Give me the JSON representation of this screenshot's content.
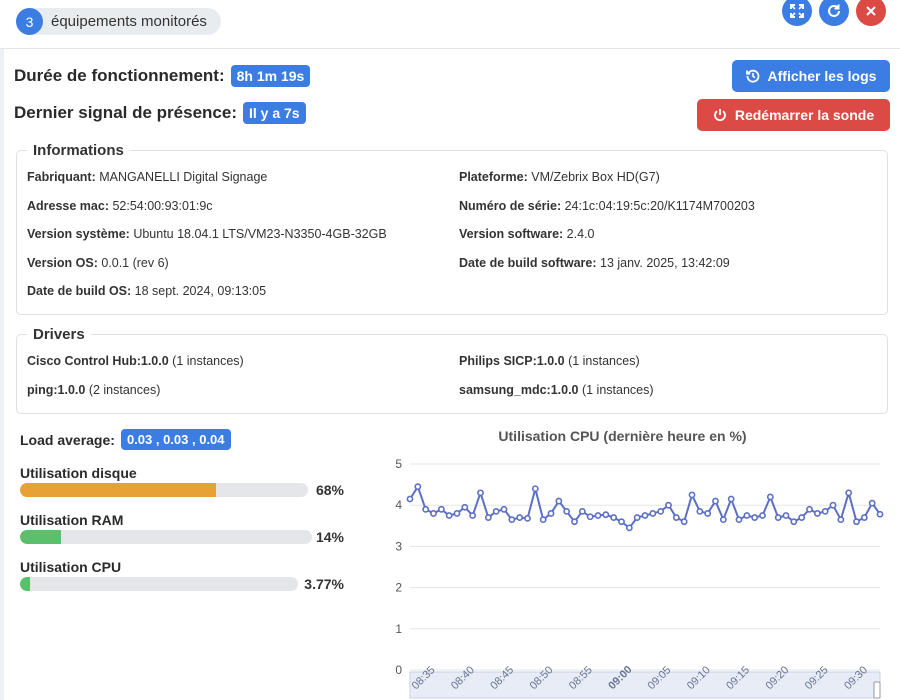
{
  "header": {
    "monitored_count": "3",
    "monitored_label": "équipements monitorés",
    "icons": [
      "expand-icon",
      "refresh-icon",
      "close-icon"
    ],
    "colors": {
      "primary": "#3b7de3",
      "danger": "#dc4a45"
    }
  },
  "status": {
    "uptime_label": "Durée de fonctionnement:",
    "uptime_value": "8h 1m 19s",
    "last_seen_label": "Dernier signal de présence:",
    "last_seen_value": "Il y a 7s"
  },
  "actions": {
    "logs_label": "Afficher les logs",
    "restart_label": "Redémarrer la sonde"
  },
  "informations": {
    "title": "Informations",
    "left": [
      {
        "key": "Fabriquant:",
        "value": " MANGANELLI Digital Signage"
      },
      {
        "key": "Adresse mac:",
        "value": " 52:54:00:93:01:9c"
      },
      {
        "key": "Version système:",
        "value": " Ubuntu 18.04.1 LTS/VM23-N3350-4GB-32GB"
      },
      {
        "key": "Version OS:",
        "value": " 0.0.1 (rev 6)"
      },
      {
        "key": "Date de build OS:",
        "value": " 18 sept. 2024, 09:13:05"
      }
    ],
    "right": [
      {
        "key": "Plateforme:",
        "value": " VM/Zebrix Box HD(G7)"
      },
      {
        "key": "Numéro de série:",
        "value": " 24:1c:04:19:5c:20/K1174M700203"
      },
      {
        "key": "Version software:",
        "value": " 2.4.0"
      },
      {
        "key": "Date de build software:",
        "value": " 13 janv. 2025, 13:42:09"
      }
    ]
  },
  "drivers": {
    "title": "Drivers",
    "left": [
      {
        "key": "Cisco Control Hub:1.0.0",
        "value": " (1 instances)"
      },
      {
        "key": "ping:1.0.0",
        "value": " (2 instances)"
      }
    ],
    "right": [
      {
        "key": "Philips SICP:1.0.0",
        "value": " (1 instances)"
      },
      {
        "key": "samsung_mdc:1.0.0",
        "value": " (1 instances)"
      }
    ]
  },
  "metrics": {
    "load_label": "Load average:",
    "load_value": "0.03 , 0.03 , 0.04",
    "disk": {
      "label": "Utilisation disque",
      "percent_text": "68%",
      "fraction": 0.68,
      "color": "#e8a135"
    },
    "ram": {
      "label": "Utilisation RAM",
      "percent_text": "14%",
      "fraction": 0.14,
      "color": "#5cbf6b"
    },
    "cpu": {
      "label": "Utilisation CPU",
      "percent_text": "3.77%",
      "fraction": 0.0377,
      "color": "#5cbf6b"
    }
  },
  "chart_data": {
    "type": "line",
    "title": "Utilisation CPU (dernière heure en %)",
    "xlabel": "",
    "ylabel": "",
    "ylim": [
      0,
      5
    ],
    "yticks": [
      "0",
      "1",
      "2",
      "3",
      "4",
      "5"
    ],
    "xticks": [
      "08:35",
      "08:40",
      "08:45",
      "08:50",
      "08:55",
      "09:00",
      "09:05",
      "09:10",
      "09:15",
      "09:20",
      "09:25",
      "09:30"
    ],
    "grid": true,
    "color": "#5b6fc7",
    "series": [
      {
        "values": [
          4.15,
          4.45,
          3.9,
          3.8,
          3.9,
          3.75,
          3.8,
          3.95,
          3.75,
          4.3,
          3.7,
          3.85,
          3.9,
          3.65,
          3.7,
          3.68,
          4.4,
          3.65,
          3.8,
          4.1,
          3.85,
          3.6,
          3.85,
          3.72,
          3.75,
          3.77,
          3.7,
          3.6,
          3.45,
          3.7,
          3.75,
          3.8,
          3.85,
          4.0,
          3.7,
          3.6,
          4.25,
          3.85,
          3.8,
          4.1,
          3.65,
          4.15,
          3.65,
          3.75,
          3.7,
          3.75,
          4.2,
          3.7,
          3.75,
          3.6,
          3.7,
          3.9,
          3.8,
          3.85,
          4.0,
          3.65,
          4.3,
          3.6,
          3.7,
          4.05,
          3.78
        ]
      }
    ]
  }
}
